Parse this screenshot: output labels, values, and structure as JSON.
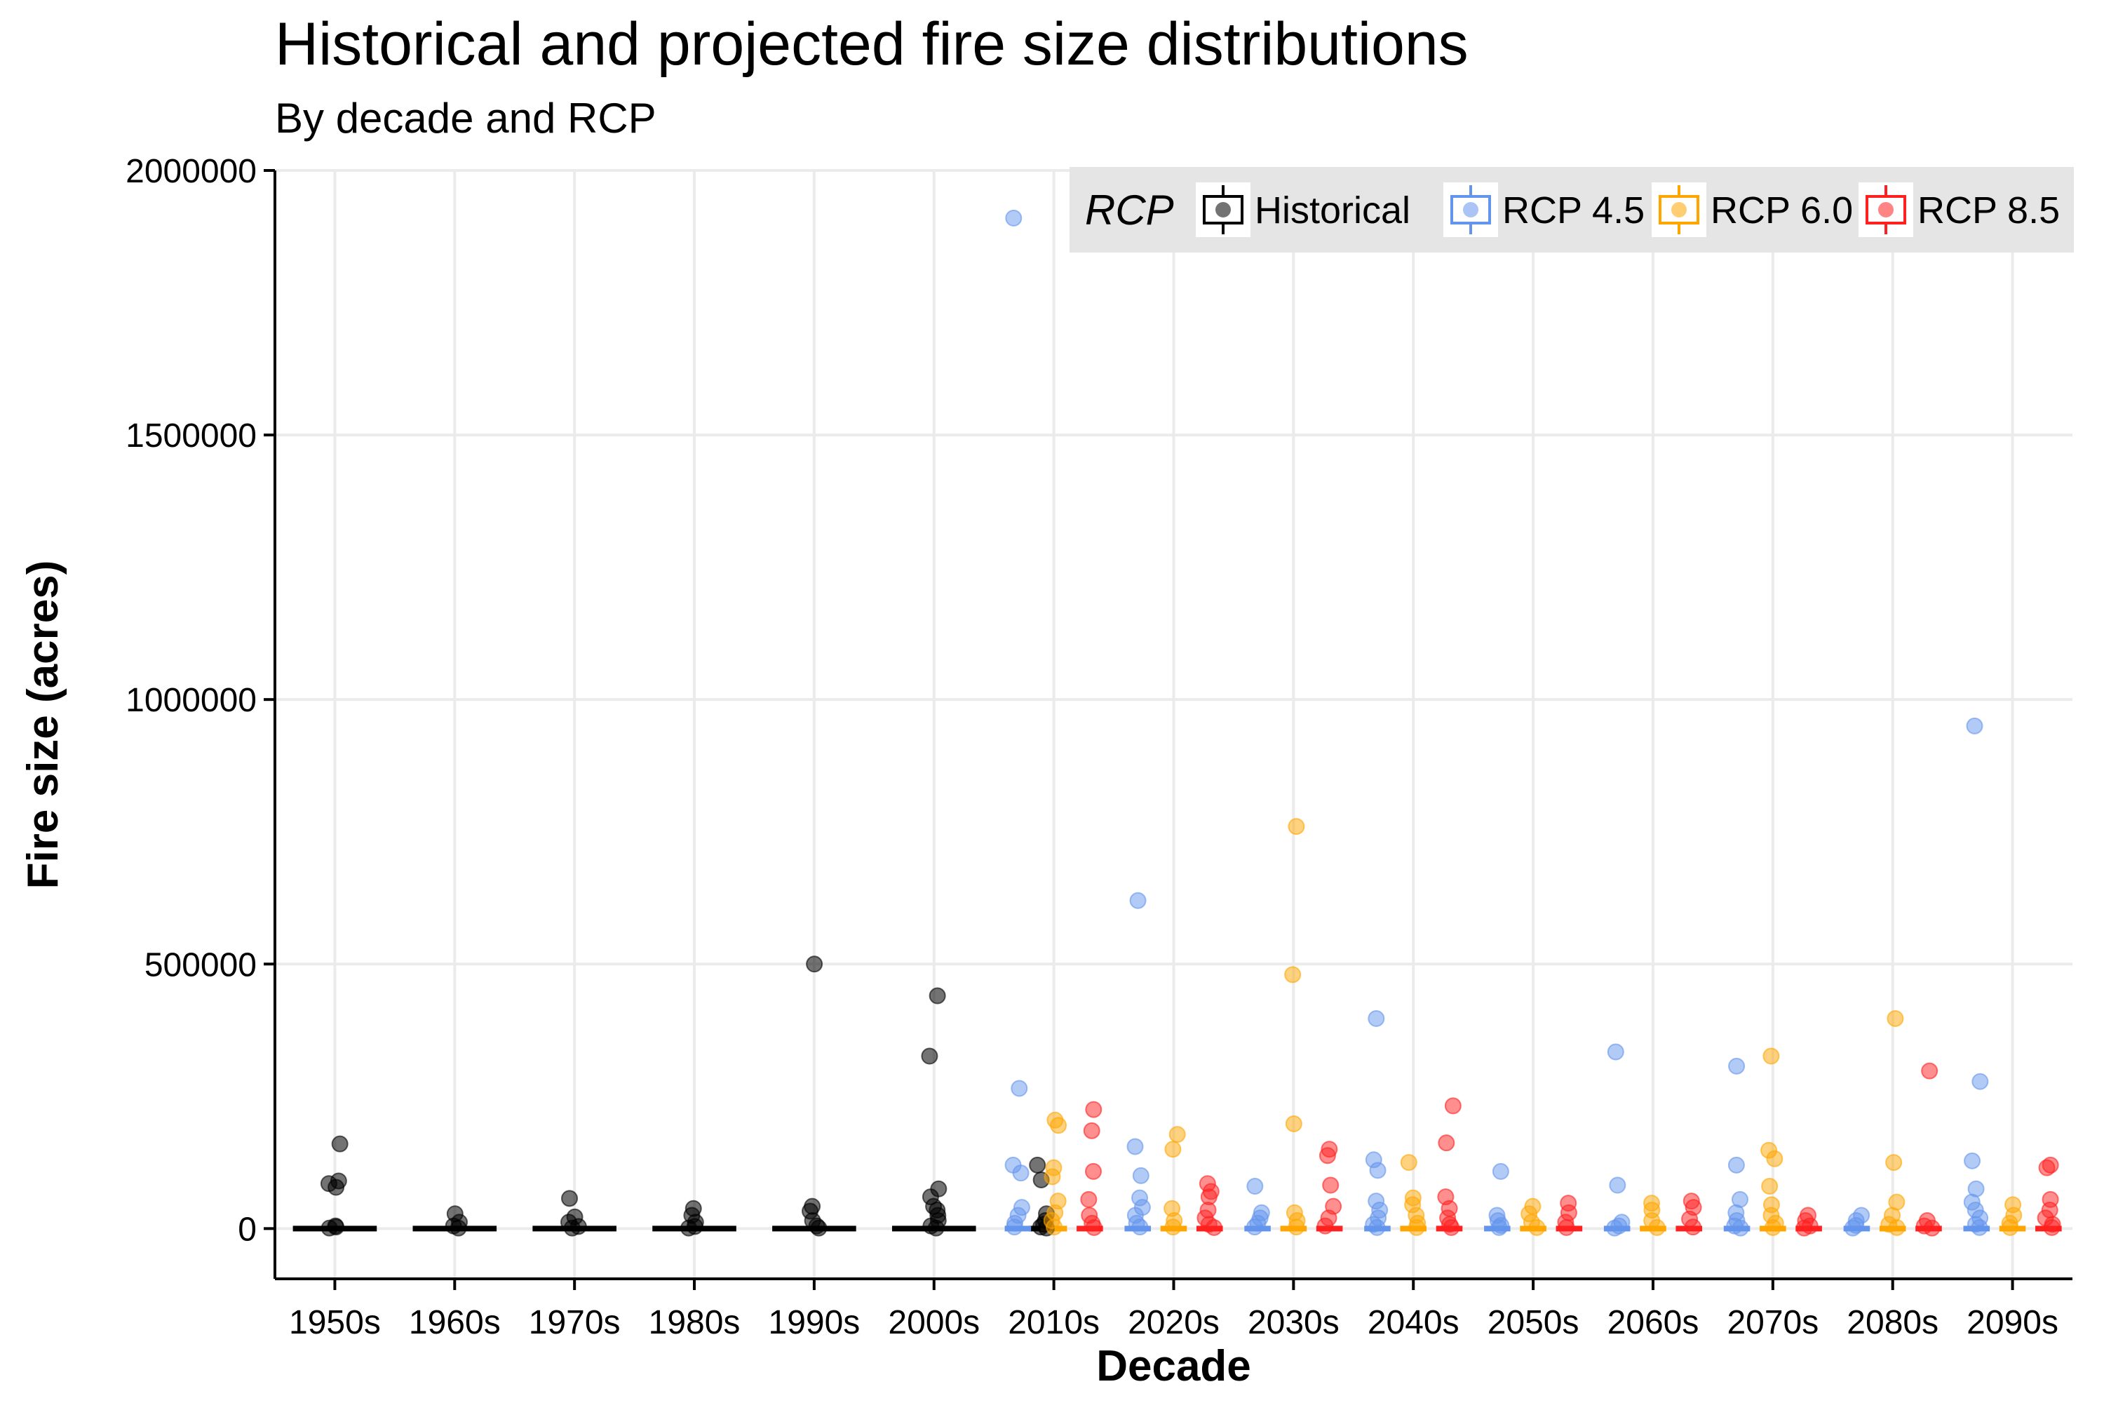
{
  "title": "Historical and projected fire size distributions",
  "subtitle": "By decade and RCP",
  "colors": {
    "Historical": "#000000",
    "RCP 4.5": "#6495ED",
    "RCP 6.0": "#FFA500",
    "RCP 8.5": "#FF2020",
    "grid": "#EBEBEB",
    "legend_bg": "#E5E5E5"
  },
  "chart_data": {
    "type": "scatter",
    "subtype": "jittered boxplot by group",
    "xlabel": "Decade",
    "ylabel": "Fire size (acres)",
    "ylim": [
      -95000,
      2000000
    ],
    "yticks": [
      0,
      500000,
      1000000,
      1500000,
      2000000
    ],
    "ytick_labels": [
      "0",
      "500000",
      "1000000",
      "1500000",
      "2000000"
    ],
    "categories": [
      "1950s",
      "1960s",
      "1970s",
      "1980s",
      "1990s",
      "2000s",
      "2010s",
      "2020s",
      "2030s",
      "2040s",
      "2050s",
      "2060s",
      "2070s",
      "2080s",
      "2090s"
    ],
    "grid": true,
    "legend": {
      "title": "RCP",
      "position": "top-right",
      "entries": [
        "Historical",
        "RCP 4.5",
        "RCP 6.0",
        "RCP 8.5"
      ]
    },
    "series": [
      {
        "name": "Historical",
        "points": [
          [
            "1950s",
            160000
          ],
          [
            "1950s",
            90000
          ],
          [
            "1950s",
            85000
          ],
          [
            "1950s",
            78000
          ],
          [
            "1950s",
            5000
          ],
          [
            "1950s",
            3000
          ],
          [
            "1950s",
            1000
          ],
          [
            "1960s",
            28000
          ],
          [
            "1960s",
            12000
          ],
          [
            "1960s",
            5000
          ],
          [
            "1960s",
            1000
          ],
          [
            "1970s",
            57000
          ],
          [
            "1970s",
            22000
          ],
          [
            "1970s",
            12000
          ],
          [
            "1970s",
            4000
          ],
          [
            "1970s",
            1000
          ],
          [
            "1980s",
            38000
          ],
          [
            "1980s",
            25000
          ],
          [
            "1980s",
            12000
          ],
          [
            "1980s",
            4000
          ],
          [
            "1980s",
            1000
          ],
          [
            "1990s",
            500000
          ],
          [
            "1990s",
            42000
          ],
          [
            "1990s",
            33000
          ],
          [
            "1990s",
            15000
          ],
          [
            "1990s",
            5000
          ],
          [
            "1990s",
            1000
          ],
          [
            "2000s",
            440000
          ],
          [
            "2000s",
            326000
          ],
          [
            "2000s",
            75000
          ],
          [
            "2000s",
            60000
          ],
          [
            "2000s",
            42000
          ],
          [
            "2000s",
            35000
          ],
          [
            "2000s",
            25000
          ],
          [
            "2000s",
            15000
          ],
          [
            "2000s",
            5000
          ],
          [
            "2000s",
            1000
          ],
          [
            "2010s",
            120000
          ],
          [
            "2010s",
            92000
          ],
          [
            "2010s",
            28000
          ],
          [
            "2010s",
            15000
          ],
          [
            "2010s",
            8000
          ],
          [
            "2010s",
            3000
          ],
          [
            "2010s",
            1000
          ]
        ]
      },
      {
        "name": "RCP 4.5",
        "points": [
          [
            "2010s",
            1910000
          ],
          [
            "2010s",
            265000
          ],
          [
            "2010s",
            120000
          ],
          [
            "2010s",
            105000
          ],
          [
            "2010s",
            40000
          ],
          [
            "2010s",
            25000
          ],
          [
            "2010s",
            10000
          ],
          [
            "2010s",
            3000
          ],
          [
            "2020s",
            620000
          ],
          [
            "2020s",
            155000
          ],
          [
            "2020s",
            100000
          ],
          [
            "2020s",
            58000
          ],
          [
            "2020s",
            40000
          ],
          [
            "2020s",
            25000
          ],
          [
            "2020s",
            10000
          ],
          [
            "2020s",
            3000
          ],
          [
            "2030s",
            80000
          ],
          [
            "2030s",
            30000
          ],
          [
            "2030s",
            20000
          ],
          [
            "2030s",
            10000
          ],
          [
            "2030s",
            3000
          ],
          [
            "2040s",
            397000
          ],
          [
            "2040s",
            130000
          ],
          [
            "2040s",
            110000
          ],
          [
            "2040s",
            52000
          ],
          [
            "2040s",
            35000
          ],
          [
            "2040s",
            20000
          ],
          [
            "2040s",
            8000
          ],
          [
            "2040s",
            2000
          ],
          [
            "2050s",
            108000
          ],
          [
            "2050s",
            25000
          ],
          [
            "2050s",
            15000
          ],
          [
            "2050s",
            6000
          ],
          [
            "2050s",
            2000
          ],
          [
            "2060s",
            334000
          ],
          [
            "2060s",
            82000
          ],
          [
            "2060s",
            12000
          ],
          [
            "2060s",
            5000
          ],
          [
            "2060s",
            1000
          ],
          [
            "2070s",
            307000
          ],
          [
            "2070s",
            120000
          ],
          [
            "2070s",
            55000
          ],
          [
            "2070s",
            30000
          ],
          [
            "2070s",
            15000
          ],
          [
            "2070s",
            5000
          ],
          [
            "2070s",
            1000
          ],
          [
            "2080s",
            25000
          ],
          [
            "2080s",
            15000
          ],
          [
            "2080s",
            6000
          ],
          [
            "2080s",
            1000
          ],
          [
            "2090s",
            950000
          ],
          [
            "2090s",
            278000
          ],
          [
            "2090s",
            128000
          ],
          [
            "2090s",
            75000
          ],
          [
            "2090s",
            50000
          ],
          [
            "2090s",
            35000
          ],
          [
            "2090s",
            20000
          ],
          [
            "2090s",
            8000
          ],
          [
            "2090s",
            2000
          ]
        ]
      },
      {
        "name": "RCP 6.0",
        "points": [
          [
            "2010s",
            205000
          ],
          [
            "2010s",
            195000
          ],
          [
            "2010s",
            115000
          ],
          [
            "2010s",
            98000
          ],
          [
            "2010s",
            52000
          ],
          [
            "2010s",
            30000
          ],
          [
            "2010s",
            15000
          ],
          [
            "2010s",
            3000
          ],
          [
            "2020s",
            178000
          ],
          [
            "2020s",
            150000
          ],
          [
            "2020s",
            38000
          ],
          [
            "2020s",
            15000
          ],
          [
            "2020s",
            3000
          ],
          [
            "2030s",
            760000
          ],
          [
            "2030s",
            480000
          ],
          [
            "2030s",
            198000
          ],
          [
            "2030s",
            30000
          ],
          [
            "2030s",
            15000
          ],
          [
            "2030s",
            3000
          ],
          [
            "2040s",
            125000
          ],
          [
            "2040s",
            58000
          ],
          [
            "2040s",
            45000
          ],
          [
            "2040s",
            25000
          ],
          [
            "2040s",
            10000
          ],
          [
            "2040s",
            2000
          ],
          [
            "2050s",
            42000
          ],
          [
            "2050s",
            28000
          ],
          [
            "2050s",
            12000
          ],
          [
            "2050s",
            2000
          ],
          [
            "2060s",
            48000
          ],
          [
            "2060s",
            35000
          ],
          [
            "2060s",
            15000
          ],
          [
            "2060s",
            2000
          ],
          [
            "2070s",
            326000
          ],
          [
            "2070s",
            148000
          ],
          [
            "2070s",
            132000
          ],
          [
            "2070s",
            80000
          ],
          [
            "2070s",
            45000
          ],
          [
            "2070s",
            25000
          ],
          [
            "2070s",
            10000
          ],
          [
            "2070s",
            2000
          ],
          [
            "2080s",
            397000
          ],
          [
            "2080s",
            125000
          ],
          [
            "2080s",
            50000
          ],
          [
            "2080s",
            25000
          ],
          [
            "2080s",
            8000
          ],
          [
            "2080s",
            2000
          ],
          [
            "2090s",
            45000
          ],
          [
            "2090s",
            25000
          ],
          [
            "2090s",
            10000
          ],
          [
            "2090s",
            2000
          ]
        ]
      },
      {
        "name": "RCP 8.5",
        "points": [
          [
            "2010s",
            225000
          ],
          [
            "2010s",
            185000
          ],
          [
            "2010s",
            108000
          ],
          [
            "2010s",
            55000
          ],
          [
            "2010s",
            25000
          ],
          [
            "2010s",
            10000
          ],
          [
            "2010s",
            2000
          ],
          [
            "2020s",
            85000
          ],
          [
            "2020s",
            70000
          ],
          [
            "2020s",
            60000
          ],
          [
            "2020s",
            35000
          ],
          [
            "2020s",
            20000
          ],
          [
            "2020s",
            8000
          ],
          [
            "2020s",
            2000
          ],
          [
            "2030s",
            150000
          ],
          [
            "2030s",
            138000
          ],
          [
            "2030s",
            82000
          ],
          [
            "2030s",
            42000
          ],
          [
            "2030s",
            20000
          ],
          [
            "2030s",
            5000
          ],
          [
            "2040s",
            232000
          ],
          [
            "2040s",
            162000
          ],
          [
            "2040s",
            60000
          ],
          [
            "2040s",
            38000
          ],
          [
            "2040s",
            20000
          ],
          [
            "2040s",
            8000
          ],
          [
            "2040s",
            2000
          ],
          [
            "2050s",
            48000
          ],
          [
            "2050s",
            30000
          ],
          [
            "2050s",
            12000
          ],
          [
            "2050s",
            2000
          ],
          [
            "2060s",
            52000
          ],
          [
            "2060s",
            40000
          ],
          [
            "2060s",
            18000
          ],
          [
            "2060s",
            3000
          ],
          [
            "2070s",
            25000
          ],
          [
            "2070s",
            15000
          ],
          [
            "2070s",
            5000
          ],
          [
            "2070s",
            1000
          ],
          [
            "2080s",
            298000
          ],
          [
            "2080s",
            15000
          ],
          [
            "2080s",
            5000
          ],
          [
            "2080s",
            1000
          ],
          [
            "2090s",
            120000
          ],
          [
            "2090s",
            115000
          ],
          [
            "2090s",
            55000
          ],
          [
            "2090s",
            35000
          ],
          [
            "2090s",
            20000
          ],
          [
            "2090s",
            8000
          ],
          [
            "2090s",
            2000
          ]
        ]
      }
    ]
  }
}
